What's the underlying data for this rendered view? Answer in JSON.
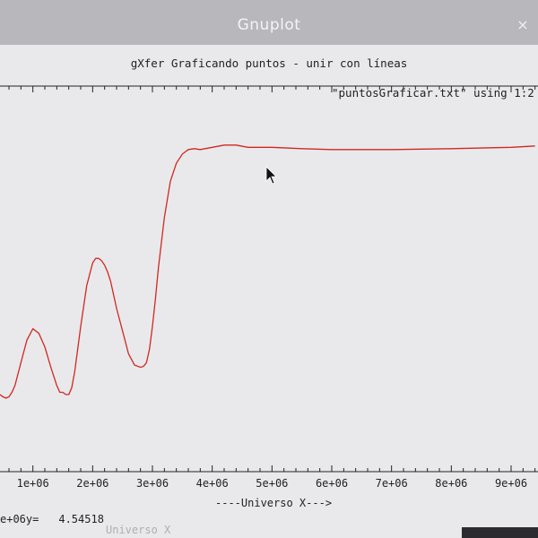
{
  "window": {
    "title": "Gnuplot",
    "close_glyph": "×"
  },
  "plot": {
    "title": "gXfer Graficando puntos - unir con líneas",
    "legend_entry": "\"puntosGraficar.txt\" using 1:2 -",
    "xlabel": "----Universo X--->",
    "status_prefix": "e+06y=",
    "status_value": "4.54518",
    "status_shadow": "Universo X",
    "line_color": "#d0281f",
    "x_tick_labels": [
      "1e+06",
      "2e+06",
      "3e+06",
      "4e+06",
      "5e+06",
      "6e+06",
      "7e+06",
      "8e+06",
      "9e+06"
    ]
  },
  "chart_data": {
    "type": "line",
    "title": "gXfer Graficando puntos - unir con líneas",
    "xlabel": "----Universo X--->",
    "ylabel": "",
    "series": [
      {
        "name": "\"puntosGraficar.txt\" using 1:2",
        "color": "#d0281f",
        "x": [
          450000,
          500000,
          550000,
          600000,
          650000,
          700000,
          800000,
          900000,
          1000000,
          1100000,
          1200000,
          1300000,
          1400000,
          1450000,
          1500000,
          1550000,
          1600000,
          1650000,
          1700000,
          1800000,
          1900000,
          2000000,
          2050000,
          2100000,
          2150000,
          2200000,
          2250000,
          2300000,
          2400000,
          2500000,
          2600000,
          2700000,
          2800000,
          2850000,
          2900000,
          2950000,
          3000000,
          3050000,
          3100000,
          3200000,
          3300000,
          3400000,
          3500000,
          3600000,
          3700000,
          3800000,
          4000000,
          4200000,
          4400000,
          4600000,
          5000000,
          5500000,
          6000000,
          7000000,
          8000000,
          9000000,
          9400000
        ],
        "y": [
          2.2,
          2.15,
          2.12,
          2.15,
          2.25,
          2.4,
          2.9,
          3.4,
          3.65,
          3.55,
          3.25,
          2.8,
          2.4,
          2.25,
          2.25,
          2.2,
          2.2,
          2.35,
          2.7,
          3.7,
          4.6,
          5.1,
          5.2,
          5.2,
          5.15,
          5.05,
          4.9,
          4.7,
          4.1,
          3.6,
          3.1,
          2.85,
          2.8,
          2.82,
          2.9,
          3.2,
          3.7,
          4.3,
          5.0,
          6.1,
          6.9,
          7.3,
          7.5,
          7.6,
          7.62,
          7.6,
          7.65,
          7.7,
          7.7,
          7.65,
          7.65,
          7.62,
          7.6,
          7.6,
          7.62,
          7.65,
          7.68
        ]
      }
    ],
    "xlim": [
      450000,
      9450000
    ],
    "grid": false
  }
}
